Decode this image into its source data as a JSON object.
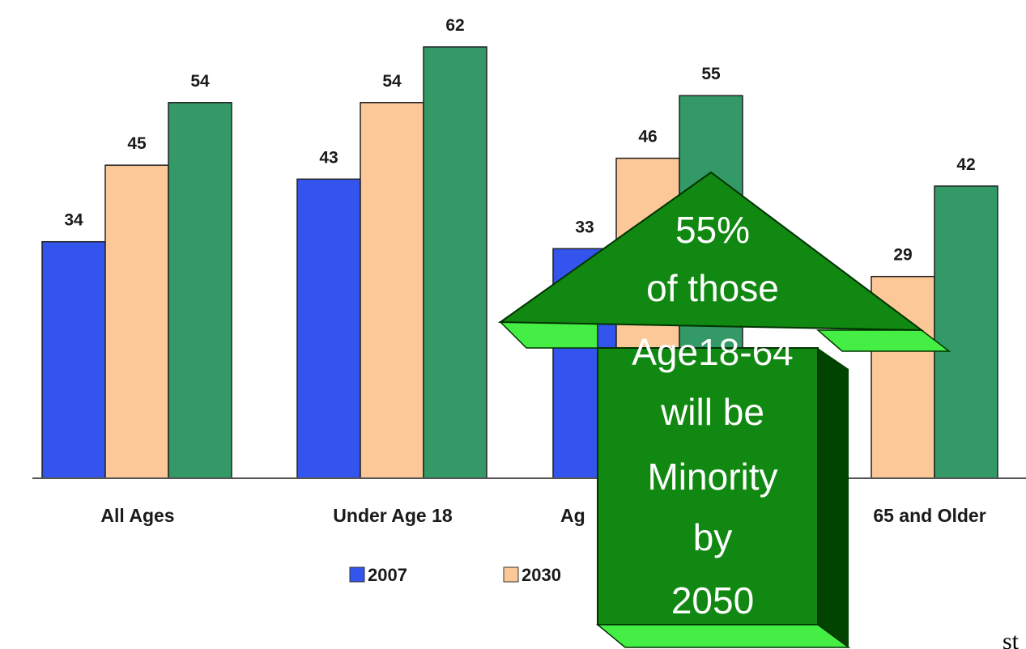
{
  "chart_data": {
    "type": "bar",
    "categories": [
      "All Ages",
      "Under Age 18",
      "Age 18-64",
      "65 and Older"
    ],
    "series": [
      {
        "name": "2007",
        "values": [
          34,
          43,
          33,
          null
        ],
        "color": "#3355ee"
      },
      {
        "name": "2030",
        "values": [
          45,
          54,
          46,
          29
        ],
        "color": "#fcc898"
      },
      {
        "name": "",
        "values": [
          54,
          62,
          55,
          42
        ],
        "color": "#339966"
      }
    ],
    "category_labels_shown": [
      "All Ages",
      "Under Age 18",
      "Ag",
      "65 and Older"
    ],
    "ylim": [
      0,
      70
    ],
    "grid": false,
    "legend_position": "bottom",
    "title": "",
    "xlabel": "",
    "ylabel": ""
  },
  "callout": {
    "lines": [
      "55%",
      "of those",
      "Age18-64",
      "will be",
      "Minority",
      "by",
      "2050"
    ],
    "color": "#118811",
    "bevel_color": "#44ee44",
    "shadow_color": "#004400"
  },
  "corner_text": "st"
}
